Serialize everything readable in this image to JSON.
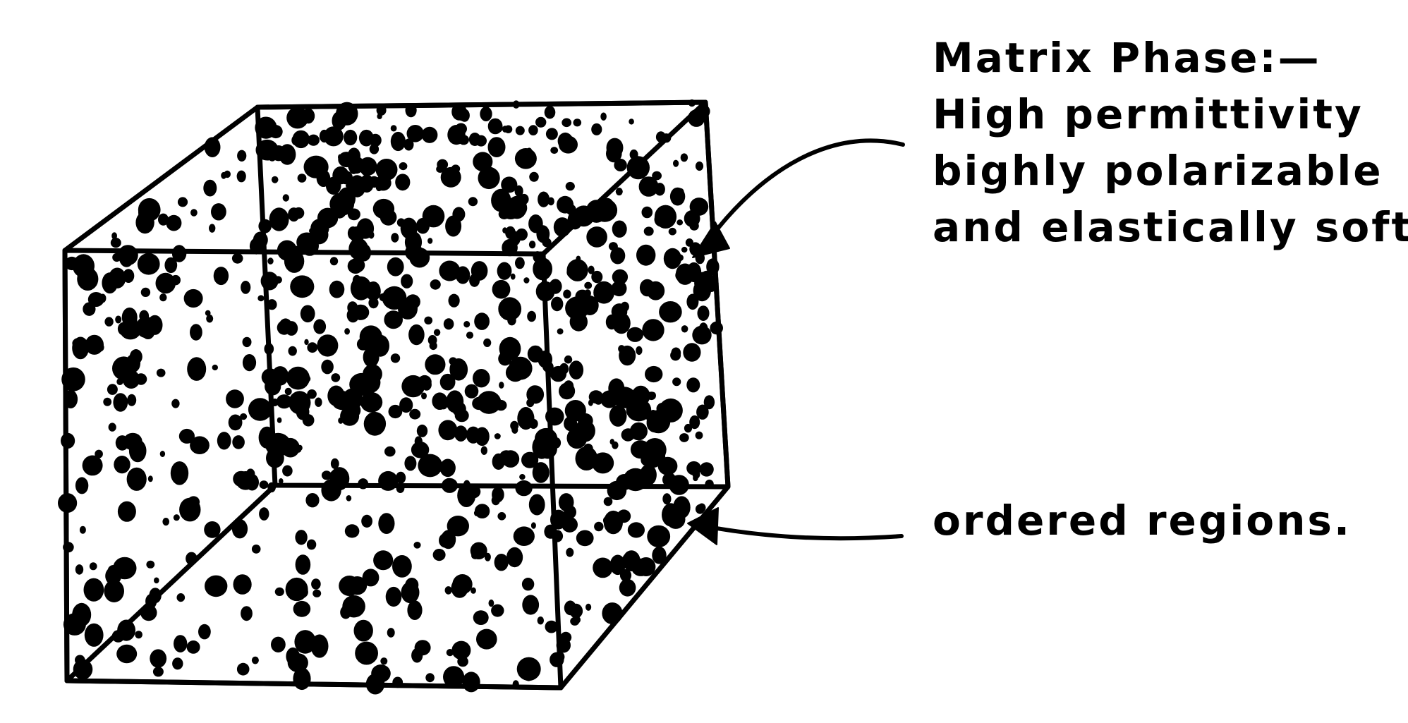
{
  "annotations": {
    "matrix_phase": {
      "lines": [
        "Matrix Phase:—",
        "High permittivity",
        "bighly polarizable",
        "and elastically soft."
      ]
    },
    "ordered_regions": {
      "text": "ordered regions."
    }
  },
  "style": {
    "ink_color": "#000000",
    "background_color": "#ffffff"
  }
}
